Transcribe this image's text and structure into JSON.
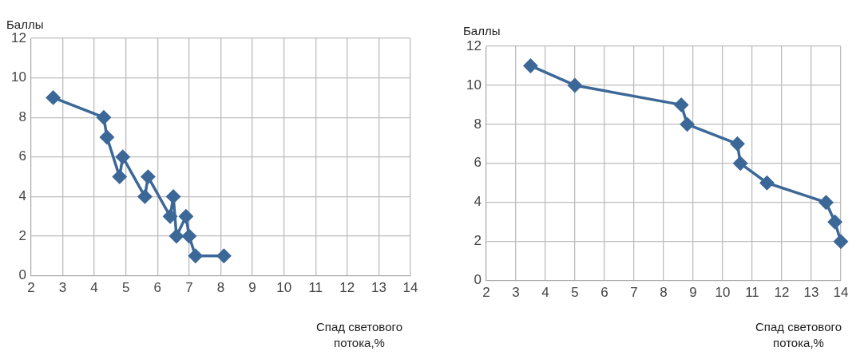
{
  "chart_data": [
    {
      "type": "line",
      "ylabel": "Баллы",
      "xlabel": "Спад светового потока,%",
      "xlim": [
        2,
        14
      ],
      "xticks": [
        2,
        3,
        4,
        5,
        6,
        7,
        8,
        9,
        10,
        11,
        12,
        13,
        14
      ],
      "ylim": [
        0,
        12
      ],
      "yticks": [
        0,
        2,
        4,
        6,
        8,
        10,
        12
      ],
      "grid": true,
      "marker": "diamond",
      "line_style": "solid",
      "series": [
        {
          "color": "#3c6898",
          "x": [
            2.7,
            4.3,
            4.4,
            4.8,
            4.9,
            5.6,
            5.7,
            6.4,
            6.5,
            6.6,
            6.9,
            7.0,
            7.2,
            8.1
          ],
          "values": [
            9,
            8,
            7,
            5,
            6,
            4,
            5,
            3,
            4,
            2,
            3,
            2,
            1,
            1
          ]
        }
      ]
    },
    {
      "type": "line",
      "ylabel": "Баллы",
      "xlabel": "Спад светового потока,%",
      "xlim": [
        2,
        14
      ],
      "xticks": [
        2,
        3,
        4,
        5,
        6,
        7,
        8,
        9,
        10,
        11,
        12,
        13,
        14
      ],
      "ylim": [
        0,
        12
      ],
      "yticks": [
        0,
        2,
        4,
        6,
        8,
        10,
        12
      ],
      "grid": true,
      "marker": "diamond",
      "line_style": "solid",
      "series": [
        {
          "color": "#3c6898",
          "x": [
            3.5,
            5,
            8.6,
            8.8,
            10.5,
            10.6,
            11.5,
            13.5,
            13.8,
            14
          ],
          "values": [
            11,
            10,
            9,
            8,
            7,
            6,
            5,
            4,
            3,
            2
          ]
        }
      ]
    }
  ]
}
